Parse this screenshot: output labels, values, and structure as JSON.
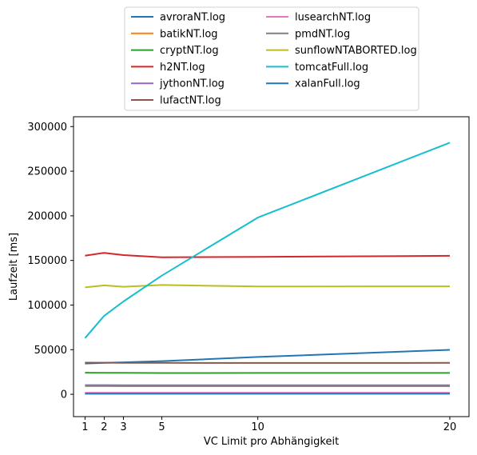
{
  "chart_data": {
    "type": "line",
    "title": "",
    "xlabel": "VC Limit pro Abhängigkeit",
    "ylabel": "Laufzeit [ms]",
    "x": [
      1,
      2,
      3,
      5,
      10,
      20
    ],
    "xticks": [
      "1",
      "2",
      "3",
      "5",
      "10",
      "20"
    ],
    "xlim": [
      0.4,
      21.0
    ],
    "yticks": [
      0,
      50000,
      100000,
      150000,
      200000,
      250000,
      300000
    ],
    "ytick_labels": [
      "0",
      "50000",
      "100000",
      "150000",
      "200000",
      "250000",
      "300000"
    ],
    "ylim": [
      -25000,
      311000
    ],
    "grid": false,
    "legend_position": "top-center",
    "series": [
      {
        "name": "avroraNT.log",
        "color": "#1f77b4",
        "values": [
          34500,
          35200,
          35800,
          37200,
          41800,
          49800
        ]
      },
      {
        "name": "batikNT.log",
        "color": "#ff7f0e",
        "values": [
          1200,
          1200,
          1200,
          1200,
          1200,
          1200
        ]
      },
      {
        "name": "cryptNT.log",
        "color": "#2ca02c",
        "values": [
          24200,
          24100,
          24000,
          23800,
          23900,
          23900
        ]
      },
      {
        "name": "h2NT.log",
        "color": "#d62728",
        "values": [
          155400,
          158500,
          156000,
          153500,
          154000,
          155200
        ]
      },
      {
        "name": "jythonNT.log",
        "color": "#9467bd",
        "values": [
          10300,
          10300,
          10200,
          10200,
          10200,
          10200
        ]
      },
      {
        "name": "lufactNT.log",
        "color": "#8c564b",
        "values": [
          35500,
          35400,
          35300,
          35200,
          35100,
          35200
        ]
      },
      {
        "name": "lusearchNT.log",
        "color": "#e377c2",
        "values": [
          1800,
          1800,
          1800,
          1800,
          1800,
          1800
        ]
      },
      {
        "name": "pmdNT.log",
        "color": "#7f7f7f",
        "values": [
          9200,
          9200,
          9100,
          9100,
          9100,
          9100
        ]
      },
      {
        "name": "sunflowNTABORTED.log",
        "color": "#bcbd22",
        "values": [
          119800,
          122000,
          120500,
          122500,
          120800,
          121000
        ]
      },
      {
        "name": "tomcatFull.log",
        "color": "#17becf",
        "values": [
          63000,
          88000,
          104000,
          133000,
          198000,
          282000
        ]
      },
      {
        "name": "xalanFull.log",
        "color": "#1f77b4",
        "values": [
          600,
          600,
          600,
          600,
          600,
          600
        ]
      }
    ]
  }
}
